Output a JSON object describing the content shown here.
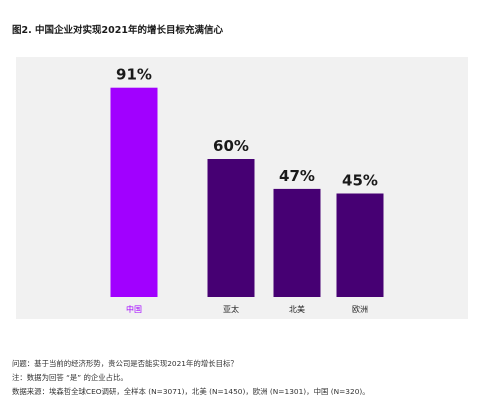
{
  "title": "图2. 中国企业对实现2021年的增长目标充满信心",
  "chart_data": {
    "type": "bar",
    "title": "图2. 中国企业对实现2021年的增长目标充满信心",
    "categories": [
      "中国",
      "亚太",
      "北美",
      "欧洲"
    ],
    "values": [
      91,
      60,
      47,
      45
    ],
    "data_labels": [
      "91%",
      "60%",
      "47%",
      "45%"
    ],
    "unit": "%",
    "ylim": [
      0,
      100
    ],
    "grid": false,
    "legend": "none",
    "colors": {
      "highlight": "#a100ff",
      "default": "#460073",
      "highlight_label": "#a100ff",
      "default_label": "#222222",
      "plot_background": "#f1f1f1"
    }
  },
  "notes": {
    "question": "问题：基于当前的经济形势，贵公司是否能实现2021年的增长目标？",
    "note": "注：数据为回答 “是” 的企业占比。",
    "source": "数据来源：埃森哲全球CEO调研，全样本 (N=3071)，北美 (N=1450)，欧洲 (N=1301)，中国 (N=320)。"
  }
}
